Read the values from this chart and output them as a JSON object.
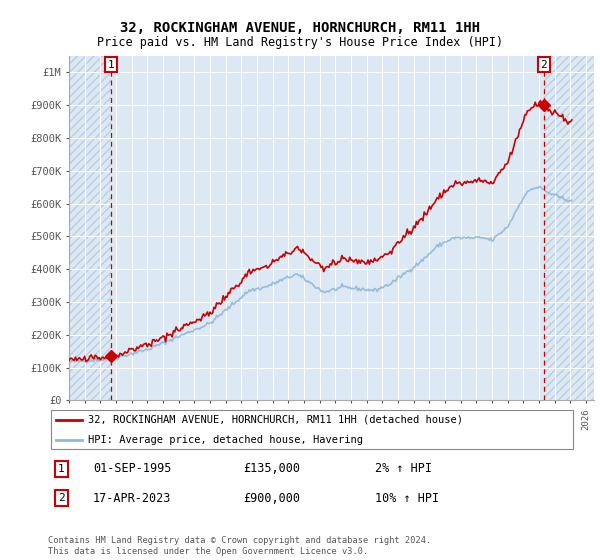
{
  "title": "32, ROCKINGHAM AVENUE, HORNCHURCH, RM11 1HH",
  "subtitle": "Price paid vs. HM Land Registry's House Price Index (HPI)",
  "legend_line1": "32, ROCKINGHAM AVENUE, HORNCHURCH, RM11 1HH (detached house)",
  "legend_line2": "HPI: Average price, detached house, Havering",
  "annotation1_date": "01-SEP-1995",
  "annotation1_price": "£135,000",
  "annotation1_hpi": "2% ↑ HPI",
  "annotation2_date": "17-APR-2023",
  "annotation2_price": "£900,000",
  "annotation2_hpi": "10% ↑ HPI",
  "footer": "Contains HM Land Registry data © Crown copyright and database right 2024.\nThis data is licensed under the Open Government Licence v3.0.",
  "plot_bg_color": "#dce9f5",
  "hatch_color": "#b8cee0",
  "hpi_line_color": "#90b8d8",
  "price_line_color": "#cc0000",
  "marker_color": "#cc0000",
  "dashed_line_color": "#cc0000",
  "ylim": [
    0,
    1050000
  ],
  "xlim_start": 1993.0,
  "xlim_end": 2026.5,
  "sale1_x": 1995.67,
  "sale1_y": 135000,
  "sale2_x": 2023.29,
  "sale2_y": 900000
}
